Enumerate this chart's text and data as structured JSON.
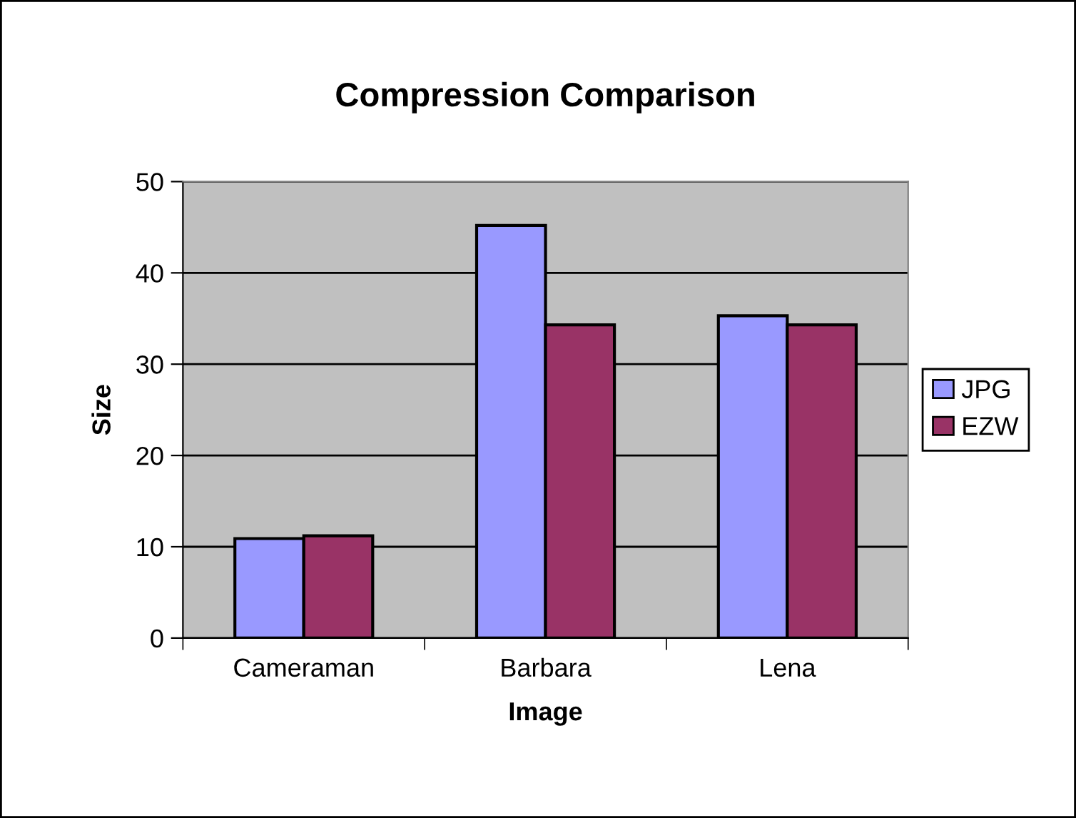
{
  "chart_data": {
    "type": "bar",
    "title": "Compression Comparison",
    "xlabel": "Image",
    "ylabel": "Size",
    "categories": [
      "Cameraman",
      "Barbara",
      "Lena"
    ],
    "series": [
      {
        "name": "JPG",
        "color": "#9999ff",
        "values": [
          10.9,
          45.2,
          35.3
        ]
      },
      {
        "name": "EZW",
        "color": "#993366",
        "values": [
          11.2,
          34.3,
          34.3
        ]
      }
    ],
    "ylim": [
      0,
      50
    ],
    "yticks": [
      0,
      10,
      20,
      30,
      40,
      50
    ],
    "grid": "y",
    "legend": "right"
  }
}
